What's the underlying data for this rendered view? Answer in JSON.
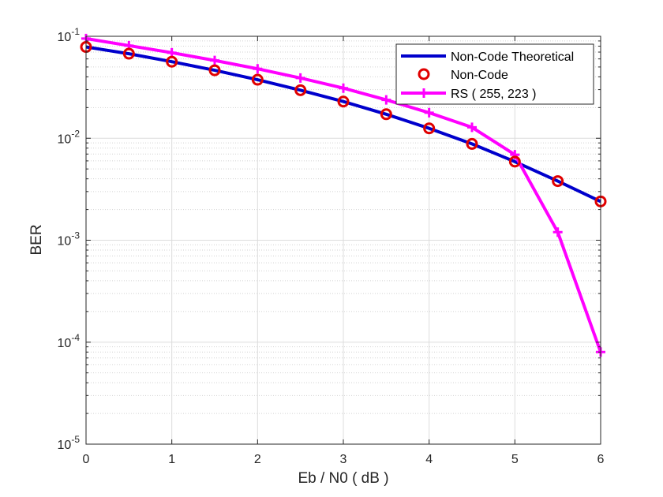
{
  "chart_data": {
    "type": "line",
    "title": "",
    "xlabel": "Eb / N0 ( dB )",
    "ylabel": "BER",
    "xlim": [
      0,
      6
    ],
    "ylim": [
      1e-05,
      0.1
    ],
    "yscale": "log",
    "grid": true,
    "legend_position": "top-right",
    "x_ticks": [
      "0",
      "1",
      "2",
      "3",
      "4",
      "5",
      "6"
    ],
    "y_ticks": [
      {
        "base": "10",
        "exp": "-1",
        "value": 0.1
      },
      {
        "base": "10",
        "exp": "-2",
        "value": 0.01
      },
      {
        "base": "10",
        "exp": "-3",
        "value": 0.001
      },
      {
        "base": "10",
        "exp": "-4",
        "value": 0.0001
      },
      {
        "base": "10",
        "exp": "-5",
        "value": 1e-05
      }
    ],
    "series": [
      {
        "name": "Non-Code Theoretical",
        "style": "line",
        "color": "#0000CC",
        "x": [
          0,
          0.5,
          1,
          1.5,
          2,
          2.5,
          3,
          3.5,
          4,
          4.5,
          5,
          5.5,
          6
        ],
        "y": [
          0.0786,
          0.0675,
          0.0563,
          0.0464,
          0.0375,
          0.0296,
          0.0229,
          0.0172,
          0.0125,
          0.0088,
          0.0059,
          0.0038,
          0.0024
        ]
      },
      {
        "name": "Non-Code",
        "style": "marker-circle",
        "color": "#E00000",
        "x": [
          0,
          0.5,
          1,
          1.5,
          2,
          2.5,
          3,
          3.5,
          4,
          4.5,
          5,
          5.5,
          6
        ],
        "y": [
          0.0786,
          0.0675,
          0.0563,
          0.0464,
          0.0375,
          0.0296,
          0.0229,
          0.0172,
          0.0125,
          0.0088,
          0.0059,
          0.0038,
          0.0024
        ]
      },
      {
        "name": "RS ( 255, 223 )",
        "style": "line-plus",
        "color": "#FF00FF",
        "x": [
          0,
          0.5,
          1,
          1.5,
          2,
          2.5,
          3,
          3.5,
          4,
          4.5,
          5,
          5.5,
          6
        ],
        "y": [
          0.095,
          0.081,
          0.069,
          0.058,
          0.048,
          0.039,
          0.031,
          0.0238,
          0.0178,
          0.0128,
          0.0069,
          0.0012,
          8e-05
        ]
      }
    ]
  }
}
